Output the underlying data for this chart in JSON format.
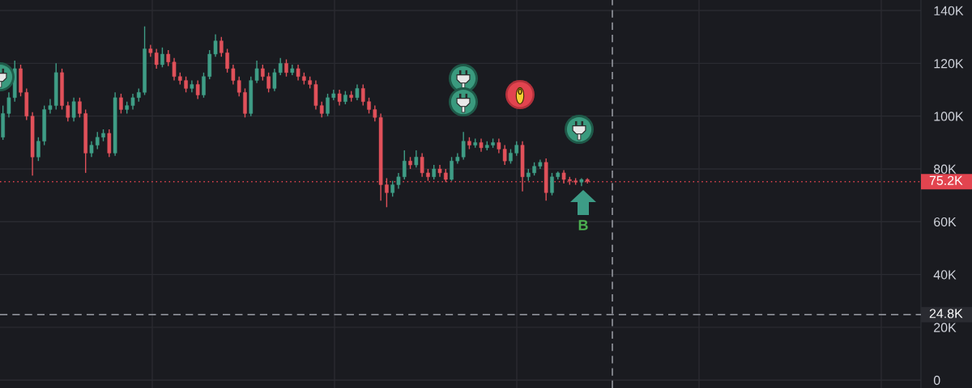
{
  "chart_data": {
    "type": "candlestick",
    "categories": [
      null,
      null,
      null,
      null,
      null,
      null,
      null,
      null,
      null,
      null,
      null,
      null,
      null,
      null,
      null,
      null,
      null,
      null,
      null,
      null,
      null,
      null,
      null,
      null,
      null,
      null,
      null,
      null,
      null,
      null,
      null,
      null,
      null,
      null,
      null,
      null,
      null,
      null,
      null,
      null,
      null,
      null,
      null,
      null,
      null,
      null,
      null,
      null,
      null,
      null,
      null,
      null,
      null,
      null,
      null,
      null,
      null,
      null,
      null,
      null,
      null,
      null,
      null,
      null,
      null,
      null,
      null,
      null,
      null,
      null,
      null,
      null,
      null,
      null,
      null,
      null,
      null,
      null,
      null,
      null,
      null,
      null,
      null,
      null,
      null,
      null,
      null,
      null,
      null,
      null,
      null,
      null,
      null,
      null,
      null,
      null,
      null,
      null,
      null,
      null,
      null,
      null,
      null,
      null,
      null,
      null,
      null,
      null,
      null,
      null,
      null,
      null,
      null,
      null,
      null,
      null,
      null,
      null,
      null,
      null,
      null,
      null,
      null,
      null,
      null,
      null,
      null,
      null,
      null,
      null,
      null,
      null,
      null,
      null,
      null,
      null,
      null,
      null,
      null,
      null,
      null,
      null,
      null,
      null,
      null,
      null,
      null,
      null,
      null,
      null,
      null,
      null,
      null,
      null,
      null,
      null
    ],
    "ohlc": [
      [
        92000,
        104000,
        91000,
        101000
      ],
      [
        101000,
        109000,
        99500,
        107000
      ],
      [
        107000,
        121000,
        105500,
        118000
      ],
      [
        118000,
        119500,
        107500,
        109000
      ],
      [
        109000,
        110500,
        98500,
        100000
      ],
      [
        100000,
        101500,
        77500,
        84500
      ],
      [
        84500,
        92000,
        83000,
        90500
      ],
      [
        90500,
        104000,
        89000,
        102500
      ],
      [
        102500,
        106500,
        101000,
        104000
      ],
      [
        104000,
        120000,
        102500,
        116500
      ],
      [
        116500,
        118000,
        102500,
        104000
      ],
      [
        104000,
        105500,
        98000,
        99500
      ],
      [
        99500,
        107000,
        98000,
        105500
      ],
      [
        105500,
        107000,
        99500,
        101000
      ],
      [
        101000,
        102500,
        78500,
        86000
      ],
      [
        86000,
        90500,
        84500,
        89000
      ],
      [
        89000,
        94000,
        87500,
        92000
      ],
      [
        92000,
        95000,
        90500,
        93500
      ],
      [
        93500,
        95000,
        84500,
        86000
      ],
      [
        86000,
        109000,
        85000,
        107000
      ],
      [
        107000,
        108500,
        101000,
        102500
      ],
      [
        102500,
        105500,
        101000,
        104000
      ],
      [
        104000,
        108500,
        102500,
        107000
      ],
      [
        107000,
        110500,
        105500,
        109000
      ],
      [
        109000,
        134000,
        108000,
        125500
      ],
      [
        125500,
        127000,
        122500,
        124000
      ],
      [
        124000,
        125500,
        118000,
        119500
      ],
      [
        119500,
        126000,
        118500,
        123500
      ],
      [
        123500,
        125000,
        119000,
        120500
      ],
      [
        120500,
        122000,
        113500,
        115000
      ],
      [
        115000,
        116500,
        112000,
        113500
      ],
      [
        113500,
        115000,
        109000,
        110500
      ],
      [
        110500,
        113500,
        109000,
        112000
      ],
      [
        112000,
        113500,
        106500,
        108000
      ],
      [
        108000,
        116500,
        107000,
        115000
      ],
      [
        115000,
        125000,
        114000,
        123500
      ],
      [
        123500,
        131000,
        122500,
        128500
      ],
      [
        128500,
        130000,
        122500,
        124000
      ],
      [
        124000,
        125500,
        116500,
        118000
      ],
      [
        118000,
        119500,
        112000,
        113500
      ],
      [
        113500,
        115000,
        107500,
        109000
      ],
      [
        109000,
        110500,
        99500,
        101000
      ],
      [
        101000,
        115000,
        100000,
        113500
      ],
      [
        113500,
        121000,
        112500,
        118000
      ],
      [
        118000,
        119500,
        113500,
        115000
      ],
      [
        115000,
        116500,
        109000,
        110500
      ],
      [
        110500,
        118000,
        109500,
        116500
      ],
      [
        116500,
        122000,
        115500,
        120000
      ],
      [
        120000,
        121500,
        115000,
        116500
      ],
      [
        116500,
        119500,
        115500,
        118000
      ],
      [
        118000,
        119500,
        113500,
        115000
      ],
      [
        115000,
        116500,
        112000,
        113500
      ],
      [
        113500,
        115000,
        110500,
        112000
      ],
      [
        112000,
        113500,
        102500,
        104000
      ],
      [
        104000,
        105500,
        99500,
        101000
      ],
      [
        101000,
        108500,
        100000,
        107000
      ],
      [
        107000,
        110000,
        106000,
        108500
      ],
      [
        108500,
        110000,
        104000,
        105500
      ],
      [
        105500,
        109500,
        104500,
        108000
      ],
      [
        108000,
        109500,
        105500,
        107000
      ],
      [
        107000,
        112000,
        106000,
        110500
      ],
      [
        110500,
        112000,
        104000,
        105500
      ],
      [
        105500,
        107000,
        101000,
        102500
      ],
      [
        102500,
        104000,
        98000,
        99500
      ],
      [
        99500,
        101000,
        68000,
        74000
      ],
      [
        74000,
        76500,
        65500,
        71000
      ],
      [
        71000,
        75500,
        69500,
        74000
      ],
      [
        74000,
        78500,
        72500,
        77000
      ],
      [
        77000,
        87000,
        76000,
        83000
      ],
      [
        83000,
        84500,
        80000,
        81500
      ],
      [
        81500,
        87000,
        80500,
        84500
      ],
      [
        84500,
        86000,
        77000,
        78500
      ],
      [
        78500,
        80000,
        75500,
        77000
      ],
      [
        77000,
        81500,
        76000,
        80000
      ],
      [
        80000,
        81500,
        77000,
        78500
      ],
      [
        78500,
        80000,
        75000,
        76000
      ],
      [
        76000,
        84500,
        75500,
        83000
      ],
      [
        83000,
        86000,
        82000,
        84500
      ],
      [
        84500,
        94000,
        83500,
        90500
      ],
      [
        90500,
        92000,
        87500,
        89000
      ],
      [
        89000,
        91500,
        88000,
        90000
      ],
      [
        90000,
        91500,
        86500,
        88000
      ],
      [
        88000,
        90500,
        87000,
        89000
      ],
      [
        89000,
        91500,
        88000,
        90000
      ],
      [
        90000,
        91500,
        86000,
        87500
      ],
      [
        87500,
        89000,
        81500,
        83000
      ],
      [
        83000,
        87500,
        82000,
        86000
      ],
      [
        86000,
        90500,
        85000,
        89000
      ],
      [
        89000,
        90500,
        71500,
        77000
      ],
      [
        77000,
        80000,
        75500,
        78500
      ],
      [
        78500,
        82500,
        77500,
        81000
      ],
      [
        81000,
        83500,
        80000,
        82500
      ],
      [
        82500,
        84000,
        68000,
        71000
      ],
      [
        71000,
        78500,
        70000,
        77000
      ],
      [
        77000,
        79000,
        76000,
        78500
      ],
      [
        78500,
        79500,
        74500,
        76000
      ],
      [
        76000,
        77000,
        74000,
        75500
      ],
      [
        75500,
        76500,
        74000,
        75000
      ],
      [
        75000,
        76500,
        73500,
        76000
      ],
      [
        76000,
        76500,
        74500,
        75200
      ],
      null,
      null,
      null,
      null,
      null,
      null,
      null,
      null,
      null,
      null,
      null,
      null,
      null,
      null,
      null,
      null,
      null,
      null,
      null,
      null,
      null,
      null,
      null,
      null,
      null,
      null,
      null,
      null,
      null,
      null,
      null,
      null,
      null,
      null,
      null,
      null,
      null,
      null,
      null,
      null,
      null,
      null,
      null,
      null,
      null,
      null,
      null,
      null,
      null,
      null,
      null,
      null,
      null,
      null,
      null,
      null
    ],
    "colors": [
      "#3f9d86",
      "#3f9d86",
      "#3f9d86",
      "#e0515a",
      "#e0515a",
      "#e0515a",
      "#3f9d86",
      "#3f9d86",
      "#3f9d86",
      "#3f9d86",
      "#e0515a",
      "#e0515a",
      "#3f9d86",
      "#e0515a",
      "#e0515a",
      "#3f9d86",
      "#3f9d86",
      "#3f9d86",
      "#e0515a",
      "#3f9d86",
      "#e0515a",
      "#3f9d86",
      "#3f9d86",
      "#3f9d86",
      "#3f9d86",
      "#e0515a",
      "#e0515a",
      "#3f9d86",
      "#e0515a",
      "#e0515a",
      "#e0515a",
      "#e0515a",
      "#3f9d86",
      "#e0515a",
      "#3f9d86",
      "#3f9d86",
      "#3f9d86",
      "#e0515a",
      "#e0515a",
      "#e0515a",
      "#e0515a",
      "#e0515a",
      "#3f9d86",
      "#3f9d86",
      "#e0515a",
      "#e0515a",
      "#3f9d86",
      "#3f9d86",
      "#e0515a",
      "#3f9d86",
      "#e0515a",
      "#e0515a",
      "#e0515a",
      "#e0515a",
      "#e0515a",
      "#3f9d86",
      "#3f9d86",
      "#e0515a",
      "#3f9d86",
      "#e0515a",
      "#3f9d86",
      "#e0515a",
      "#e0515a",
      "#e0515a",
      "#e0515a",
      "#e0515a",
      "#3f9d86",
      "#3f9d86",
      "#3f9d86",
      "#e0515a",
      "#3f9d86",
      "#e0515a",
      "#e0515a",
      "#3f9d86",
      "#e0515a",
      "#e0515a",
      "#3f9d86",
      "#3f9d86",
      "#3f9d86",
      "#e0515a",
      "#3f9d86",
      "#e0515a",
      "#3f9d86",
      "#3f9d86",
      "#e0515a",
      "#e0515a",
      "#3f9d86",
      "#3f9d86",
      "#e0515a",
      "#3f9d86",
      "#3f9d86",
      "#3f9d86",
      "#e0515a",
      "#3f9d86",
      "#3f9d86",
      "#e0515a",
      "#e0515a",
      "#e0515a",
      "#3f9d86",
      "#e0515a",
      null,
      null,
      null,
      null,
      null,
      null,
      null,
      null,
      null,
      null,
      null,
      null,
      null,
      null,
      null,
      null,
      null,
      null,
      null,
      null,
      null,
      null,
      null,
      null,
      null,
      null,
      null,
      null,
      null,
      null,
      null,
      null,
      null,
      null,
      null,
      null,
      null,
      null,
      null,
      null,
      null,
      null,
      null,
      null,
      null,
      null,
      null,
      null,
      null,
      null,
      null,
      null,
      null,
      null,
      null,
      null
    ],
    "ylim": [
      -3000,
      144000
    ],
    "yticks": [
      0,
      {
        "value": 20000,
        "label": "20K"
      },
      {
        "value": 40000,
        "label": "40K"
      },
      {
        "value": 60000,
        "label": "60K"
      },
      {
        "value": 80000,
        "label": "80K"
      },
      {
        "value": 100000,
        "label": "100K"
      },
      {
        "value": 120000,
        "label": "120K"
      },
      {
        "value": 140000,
        "label": "140K"
      }
    ],
    "ref_lines": [
      {
        "axis": "y",
        "value": 75200,
        "label": "75.2K",
        "color": "#e2444f",
        "line_style": "dotted"
      },
      {
        "axis": "y",
        "value": 24800,
        "label": "24.8K",
        "color": "#9a9da5",
        "line_style": "dashed"
      }
    ],
    "annotations": [
      "B"
    ],
    "grid": true,
    "tick_labels": "y"
  }
}
